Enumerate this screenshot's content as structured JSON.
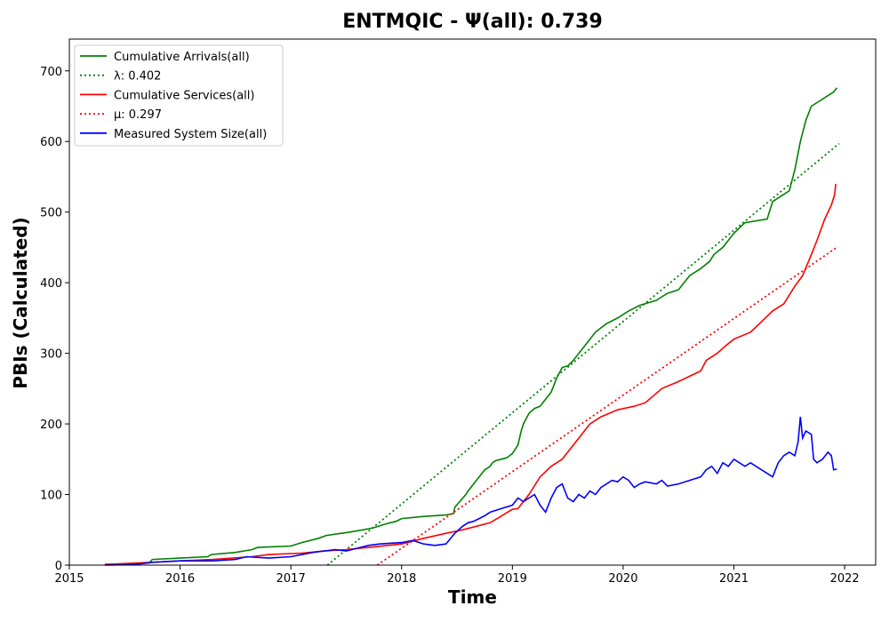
{
  "chart_data": {
    "type": "line",
    "title": "ENTMQIC -  Ψ(all): 0.739",
    "xlabel": "Time",
    "ylabel": "PBIs (Calculated)",
    "xlim": [
      2015.0,
      2022.28
    ],
    "ylim": [
      0,
      745
    ],
    "x_ticks": [
      "2015",
      "2016",
      "2017",
      "2018",
      "2019",
      "2020",
      "2021",
      "2022"
    ],
    "y_ticks": [
      "0",
      "100",
      "200",
      "300",
      "400",
      "500",
      "600",
      "700"
    ],
    "grid": false,
    "legend_position": "upper left",
    "series": [
      {
        "name": "Cumulative Arrivals(all)",
        "color": "#008000",
        "style": "solid",
        "x": [
          2015.32,
          2015.6,
          2015.72,
          2015.75,
          2016.0,
          2016.25,
          2016.28,
          2016.5,
          2016.65,
          2016.7,
          2017.0,
          2017.1,
          2017.25,
          2017.32,
          2017.5,
          2017.65,
          2017.75,
          2017.85,
          2017.95,
          2018.0,
          2018.2,
          2018.4,
          2018.47,
          2018.48,
          2018.58,
          2018.6,
          2018.65,
          2018.7,
          2018.75,
          2018.8,
          2018.82,
          2018.85,
          2018.9,
          2018.95,
          2019.0,
          2019.05,
          2019.08,
          2019.1,
          2019.15,
          2019.2,
          2019.25,
          2019.35,
          2019.4,
          2019.45,
          2019.5,
          2019.55,
          2019.6,
          2019.65,
          2019.7,
          2019.75,
          2019.8,
          2019.85,
          2019.95,
          2020.05,
          2020.15,
          2020.3,
          2020.35,
          2020.4,
          2020.5,
          2020.55,
          2020.6,
          2020.7,
          2020.78,
          2020.82,
          2020.9,
          2020.95,
          2021.0,
          2021.1,
          2021.3,
          2021.35,
          2021.45,
          2021.5,
          2021.55,
          2021.6,
          2021.65,
          2021.7,
          2021.75,
          2021.8,
          2021.85,
          2021.9,
          2021.93
        ],
        "y": [
          1,
          2,
          3,
          8,
          10,
          12,
          15,
          18,
          22,
          25,
          27,
          32,
          38,
          42,
          46,
          50,
          53,
          58,
          62,
          66,
          69,
          71,
          73,
          82,
          100,
          105,
          115,
          125,
          135,
          140,
          145,
          148,
          150,
          152,
          158,
          170,
          190,
          200,
          215,
          222,
          225,
          245,
          265,
          280,
          282,
          290,
          300,
          310,
          320,
          330,
          336,
          342,
          350,
          360,
          368,
          375,
          380,
          385,
          390,
          400,
          410,
          420,
          430,
          440,
          450,
          460,
          470,
          485,
          490,
          515,
          525,
          530,
          560,
          600,
          630,
          650,
          655,
          660,
          665,
          670,
          676
        ]
      },
      {
        "name": "λ: 0.402",
        "color": "#008000",
        "style": "dotted",
        "x": [
          2017.33,
          2021.95
        ],
        "y": [
          0,
          597
        ]
      },
      {
        "name": "Cumulative Services(all)",
        "color": "#ff0000",
        "style": "solid",
        "x": [
          2015.32,
          2015.75,
          2016.0,
          2016.3,
          2016.65,
          2016.8,
          2017.1,
          2017.3,
          2017.5,
          2017.7,
          2018.0,
          2018.2,
          2018.4,
          2018.55,
          2018.8,
          2019.0,
          2019.05,
          2019.15,
          2019.25,
          2019.35,
          2019.45,
          2019.5,
          2019.55,
          2019.6,
          2019.7,
          2019.8,
          2019.95,
          2020.1,
          2020.2,
          2020.35,
          2020.5,
          2020.7,
          2020.75,
          2020.85,
          2020.92,
          2021.0,
          2021.15,
          2021.25,
          2021.35,
          2021.45,
          2021.55,
          2021.62,
          2021.7,
          2021.75,
          2021.82,
          2021.88,
          2021.91,
          2021.92
        ],
        "y": [
          1,
          4,
          6,
          8,
          12,
          15,
          17,
          20,
          22,
          25,
          30,
          38,
          45,
          50,
          60,
          79,
          80,
          100,
          125,
          140,
          150,
          160,
          170,
          180,
          200,
          210,
          220,
          225,
          230,
          250,
          260,
          275,
          290,
          300,
          310,
          320,
          330,
          345,
          360,
          370,
          395,
          410,
          440,
          460,
          490,
          510,
          525,
          540
        ]
      },
      {
        "name": "μ: 0.297",
        "color": "#ff0000",
        "style": "dotted",
        "x": [
          2017.78,
          2021.92
        ],
        "y": [
          0,
          449
        ]
      },
      {
        "name": "Measured System Size(all)",
        "color": "#0000ff",
        "style": "solid",
        "x": [
          2015.32,
          2015.6,
          2015.75,
          2016.0,
          2016.3,
          2016.5,
          2016.6,
          2016.8,
          2017.0,
          2017.2,
          2017.4,
          2017.5,
          2017.7,
          2017.8,
          2018.0,
          2018.1,
          2018.2,
          2018.3,
          2018.4,
          2018.48,
          2018.55,
          2018.6,
          2018.65,
          2018.7,
          2018.75,
          2018.8,
          2018.9,
          2019.0,
          2019.05,
          2019.1,
          2019.15,
          2019.2,
          2019.25,
          2019.3,
          2019.35,
          2019.4,
          2019.45,
          2019.5,
          2019.55,
          2019.6,
          2019.65,
          2019.7,
          2019.75,
          2019.8,
          2019.85,
          2019.9,
          2019.95,
          2020.0,
          2020.05,
          2020.1,
          2020.15,
          2020.2,
          2020.3,
          2020.35,
          2020.4,
          2020.5,
          2020.6,
          2020.7,
          2020.75,
          2020.8,
          2020.85,
          2020.9,
          2020.95,
          2021.0,
          2021.05,
          2021.1,
          2021.15,
          2021.2,
          2021.3,
          2021.35,
          2021.4,
          2021.45,
          2021.5,
          2021.55,
          2021.58,
          2021.6,
          2021.62,
          2021.65,
          2021.7,
          2021.72,
          2021.75,
          2021.8,
          2021.85,
          2021.88,
          2021.9,
          2021.93
        ],
        "y": [
          0,
          1,
          4,
          6,
          6,
          8,
          12,
          10,
          12,
          18,
          22,
          20,
          28,
          30,
          32,
          35,
          30,
          28,
          30,
          45,
          55,
          60,
          62,
          66,
          70,
          75,
          80,
          85,
          95,
          90,
          95,
          100,
          85,
          75,
          95,
          110,
          115,
          95,
          90,
          100,
          95,
          105,
          100,
          110,
          115,
          120,
          118,
          125,
          120,
          110,
          115,
          118,
          115,
          120,
          112,
          115,
          120,
          125,
          135,
          140,
          130,
          145,
          140,
          150,
          145,
          140,
          145,
          140,
          130,
          125,
          145,
          155,
          160,
          155,
          175,
          210,
          180,
          190,
          185,
          150,
          145,
          150,
          160,
          155,
          135,
          136
        ]
      }
    ]
  }
}
